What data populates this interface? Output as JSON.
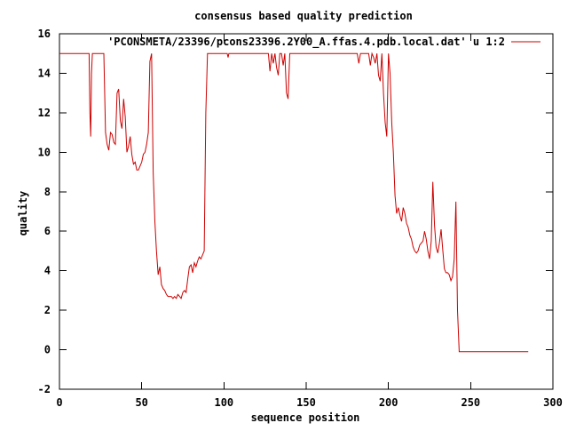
{
  "chart_data": {
    "type": "line",
    "title": "consensus based quality prediction",
    "xlabel": "sequence position",
    "ylabel": "quality",
    "xlim": [
      0,
      300
    ],
    "ylim": [
      -2,
      16
    ],
    "xticks": [
      0,
      50,
      100,
      150,
      200,
      250,
      300
    ],
    "yticks": [
      -2,
      0,
      2,
      4,
      6,
      8,
      10,
      12,
      14,
      16
    ],
    "grid": false,
    "legend": "top-right",
    "series": [
      {
        "name": "'PCONSMETA/23396/pcons23396.2Y00_A.ffas.4.pdb.local.dat' u 1:2",
        "color": "#cc0000",
        "points": [
          [
            0,
            15
          ],
          [
            18,
            15
          ],
          [
            18.5,
            12
          ],
          [
            19,
            10.8
          ],
          [
            19.5,
            14
          ],
          [
            20,
            15
          ],
          [
            27,
            15
          ],
          [
            28,
            11
          ],
          [
            29,
            10.4
          ],
          [
            30,
            10.1
          ],
          [
            31,
            11
          ],
          [
            32,
            10.9
          ],
          [
            33,
            10.5
          ],
          [
            34,
            10.4
          ],
          [
            35,
            13
          ],
          [
            36,
            13.2
          ],
          [
            37,
            11.6
          ],
          [
            38,
            11.2
          ],
          [
            39,
            12.7
          ],
          [
            40,
            11.8
          ],
          [
            41,
            10
          ],
          [
            42,
            10.3
          ],
          [
            43,
            10.8
          ],
          [
            44,
            9.9
          ],
          [
            45,
            9.4
          ],
          [
            46,
            9.5
          ],
          [
            47,
            9.1
          ],
          [
            48,
            9.1
          ],
          [
            49,
            9.3
          ],
          [
            50,
            9.5
          ],
          [
            51,
            9.9
          ],
          [
            52,
            10
          ],
          [
            53,
            10.4
          ],
          [
            54,
            11
          ],
          [
            55,
            14.6
          ],
          [
            56,
            15
          ],
          [
            57,
            9
          ],
          [
            58,
            6.5
          ],
          [
            59,
            5
          ],
          [
            60,
            3.8
          ],
          [
            61,
            4.2
          ],
          [
            62,
            3.3
          ],
          [
            63,
            3.1
          ],
          [
            64,
            3
          ],
          [
            65,
            2.8
          ],
          [
            66,
            2.7
          ],
          [
            67,
            2.7
          ],
          [
            68,
            2.7
          ],
          [
            69,
            2.6
          ],
          [
            70,
            2.7
          ],
          [
            71,
            2.6
          ],
          [
            72,
            2.8
          ],
          [
            73,
            2.7
          ],
          [
            74,
            2.6
          ],
          [
            75,
            2.9
          ],
          [
            76,
            3
          ],
          [
            77,
            2.9
          ],
          [
            78,
            3.6
          ],
          [
            79,
            4.2
          ],
          [
            80,
            4.3
          ],
          [
            81,
            3.9
          ],
          [
            82,
            4.4
          ],
          [
            83,
            4.2
          ],
          [
            84,
            4.5
          ],
          [
            85,
            4.7
          ],
          [
            86,
            4.6
          ],
          [
            87,
            4.8
          ],
          [
            88,
            5
          ],
          [
            89,
            12
          ],
          [
            90,
            15
          ],
          [
            102,
            15
          ],
          [
            102.5,
            14.8
          ],
          [
            103,
            15
          ],
          [
            127,
            15
          ],
          [
            128,
            14.1
          ],
          [
            129,
            15
          ],
          [
            130,
            14.5
          ],
          [
            131,
            15
          ],
          [
            132,
            14.3
          ],
          [
            133,
            13.9
          ],
          [
            134,
            15
          ],
          [
            135,
            15
          ],
          [
            136,
            14.4
          ],
          [
            137,
            15
          ],
          [
            138,
            13
          ],
          [
            139,
            12.7
          ],
          [
            140,
            15
          ],
          [
            181,
            15
          ],
          [
            182,
            14.5
          ],
          [
            183,
            15
          ],
          [
            188,
            15
          ],
          [
            189,
            14.4
          ],
          [
            190,
            15
          ],
          [
            191,
            14.8
          ],
          [
            192,
            14.5
          ],
          [
            193,
            15
          ],
          [
            194,
            13.9
          ],
          [
            195,
            13.6
          ],
          [
            196,
            15
          ],
          [
            197,
            13
          ],
          [
            198,
            11.5
          ],
          [
            199,
            10.8
          ],
          [
            200,
            15
          ],
          [
            201,
            14
          ],
          [
            202,
            11.5
          ],
          [
            203,
            10
          ],
          [
            204,
            7.8
          ],
          [
            205,
            6.9
          ],
          [
            206,
            7.2
          ],
          [
            207,
            6.8
          ],
          [
            208,
            6.5
          ],
          [
            209,
            7.2
          ],
          [
            210,
            6.9
          ],
          [
            211,
            6.4
          ],
          [
            212,
            6.2
          ],
          [
            213,
            5.8
          ],
          [
            214,
            5.6
          ],
          [
            215,
            5.2
          ],
          [
            216,
            5
          ],
          [
            217,
            4.9
          ],
          [
            218,
            5
          ],
          [
            219,
            5.3
          ],
          [
            220,
            5.4
          ],
          [
            221,
            5.5
          ],
          [
            222,
            6
          ],
          [
            223,
            5.6
          ],
          [
            224,
            5
          ],
          [
            225,
            4.6
          ],
          [
            226,
            5.5
          ],
          [
            227,
            8.5
          ],
          [
            228,
            6.3
          ],
          [
            229,
            5.2
          ],
          [
            230,
            4.9
          ],
          [
            231,
            5.4
          ],
          [
            232,
            6.1
          ],
          [
            233,
            5.1
          ],
          [
            234,
            4.1
          ],
          [
            235,
            3.9
          ],
          [
            236,
            3.9
          ],
          [
            237,
            3.8
          ],
          [
            238,
            3.5
          ],
          [
            239,
            3.7
          ],
          [
            240,
            4.6
          ],
          [
            241,
            7.5
          ],
          [
            242,
            2
          ],
          [
            243,
            -0.1
          ],
          [
            285,
            -0.1
          ]
        ]
      }
    ]
  }
}
